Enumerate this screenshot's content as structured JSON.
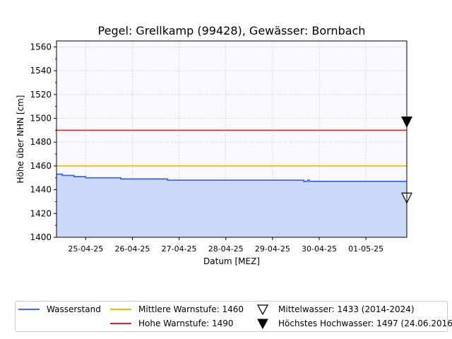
{
  "chart_data": {
    "type": "line",
    "title": "Pegel:  Grellkamp (99428), Gewässer:  Bornbach",
    "xlabel": "Datum [MEZ]",
    "ylabel": "Höhe über NHN [cm]",
    "ylim": [
      1400,
      1565
    ],
    "yticks": [
      1400,
      1420,
      1440,
      1460,
      1480,
      1500,
      1520,
      1540,
      1560
    ],
    "xlim": [
      "2025-04-24T09:00",
      "2025-05-01T21:00"
    ],
    "xticks": [
      "2025-04-25T00:00",
      "2025-04-26T00:00",
      "2025-04-27T00:00",
      "2025-04-28T00:00",
      "2025-04-29T00:00",
      "2025-04-30T00:00",
      "2025-05-01T00:00"
    ],
    "xtick_labels": [
      "25-04-25",
      "26-04-25",
      "27-04-25",
      "28-04-25",
      "29-04-25",
      "30-04-25",
      "01-05-25"
    ],
    "grid": true,
    "legend_position": "bottom",
    "series": [
      {
        "name": "Wasserstand",
        "color": "#4169e1",
        "fill": "#c9d9f7",
        "step": true,
        "points": [
          [
            "2025-04-24T09:00",
            1453
          ],
          [
            "2025-04-24T12:00",
            1452
          ],
          [
            "2025-04-24T18:00",
            1451
          ],
          [
            "2025-04-25T00:00",
            1450
          ],
          [
            "2025-04-25T18:00",
            1449
          ],
          [
            "2025-04-26T18:00",
            1448
          ],
          [
            "2025-04-29T16:00",
            1447
          ],
          [
            "2025-04-29T18:00",
            1448
          ],
          [
            "2025-04-29T19:00",
            1447
          ],
          [
            "2025-05-01T21:00",
            1447
          ]
        ]
      }
    ],
    "reference_lines": [
      {
        "name": "Mittlere Warnstufe: 1460",
        "value": 1460,
        "color": "#f5b800"
      },
      {
        "name": "Hohe Warnstufe: 1490",
        "value": 1490,
        "color": "#d62728"
      }
    ],
    "markers": [
      {
        "name": "Mittelwasser: 1433 (2014-2024)",
        "value": 1433,
        "x": "2025-05-01T21:00",
        "style": "hollow-triangle-down"
      },
      {
        "name": "Höchstes Hochwasser: 1497 (24.06.2016)",
        "value": 1497,
        "x": "2025-05-01T21:00",
        "style": "filled-triangle-down"
      }
    ]
  }
}
